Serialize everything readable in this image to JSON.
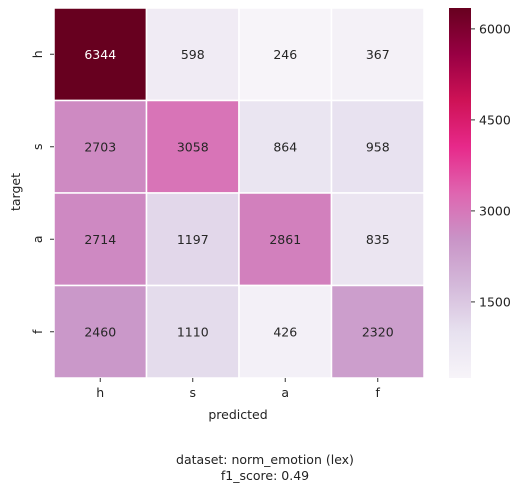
{
  "chart_data": {
    "type": "heatmap",
    "xlabel": "predicted",
    "ylabel": "target",
    "x_categories": [
      "h",
      "s",
      "a",
      "f"
    ],
    "y_categories": [
      "h",
      "s",
      "a",
      "f"
    ],
    "matrix": [
      [
        6344,
        598,
        246,
        367
      ],
      [
        2703,
        3058,
        864,
        958
      ],
      [
        2714,
        1197,
        2861,
        835
      ],
      [
        2460,
        1110,
        426,
        2320
      ]
    ],
    "colorbar": {
      "min": 246,
      "max": 6344,
      "ticks": [
        1500,
        3000,
        4500,
        6000
      ],
      "colormap": "PuRd",
      "stops": [
        "#f7f4f9",
        "#e7e1ef",
        "#d4b9da",
        "#c994c7",
        "#df65b0",
        "#e7298a",
        "#ce1256",
        "#980043",
        "#67001f"
      ]
    },
    "gridlines": "white",
    "caption": [
      "dataset: norm_emotion (lex)",
      "f1_score: 0.49"
    ]
  }
}
